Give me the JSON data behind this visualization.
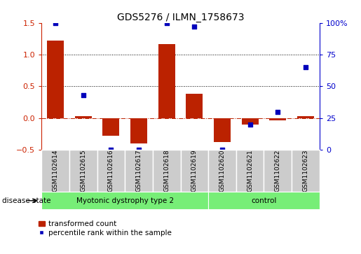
{
  "title": "GDS5276 / ILMN_1758673",
  "samples": [
    "GSM1102614",
    "GSM1102615",
    "GSM1102616",
    "GSM1102617",
    "GSM1102618",
    "GSM1102619",
    "GSM1102620",
    "GSM1102621",
    "GSM1102622",
    "GSM1102623"
  ],
  "red_values": [
    1.22,
    0.03,
    -0.28,
    -0.4,
    1.17,
    0.38,
    -0.38,
    -0.1,
    -0.03,
    0.03
  ],
  "blue_values": [
    100,
    43,
    0,
    0,
    100,
    97,
    0,
    20,
    30,
    65
  ],
  "ylim_left": [
    -0.5,
    1.5
  ],
  "ylim_right": [
    0,
    100
  ],
  "red_color": "#bb2200",
  "blue_color": "#0000bb",
  "bar_width": 0.6,
  "group1_label": "Myotonic dystrophy type 2",
  "group2_label": "control",
  "group1_count": 6,
  "group2_count": 4,
  "green_color": "#77ee77",
  "gray_color": "#cccccc",
  "disease_state_label": "disease state",
  "legend_red": "transformed count",
  "legend_blue": "percentile rank within the sample",
  "tick_color_left": "#cc2200",
  "tick_color_right": "#0000cc",
  "title_fontsize": 10,
  "label_fontsize": 6.5,
  "legend_fontsize": 7.5
}
